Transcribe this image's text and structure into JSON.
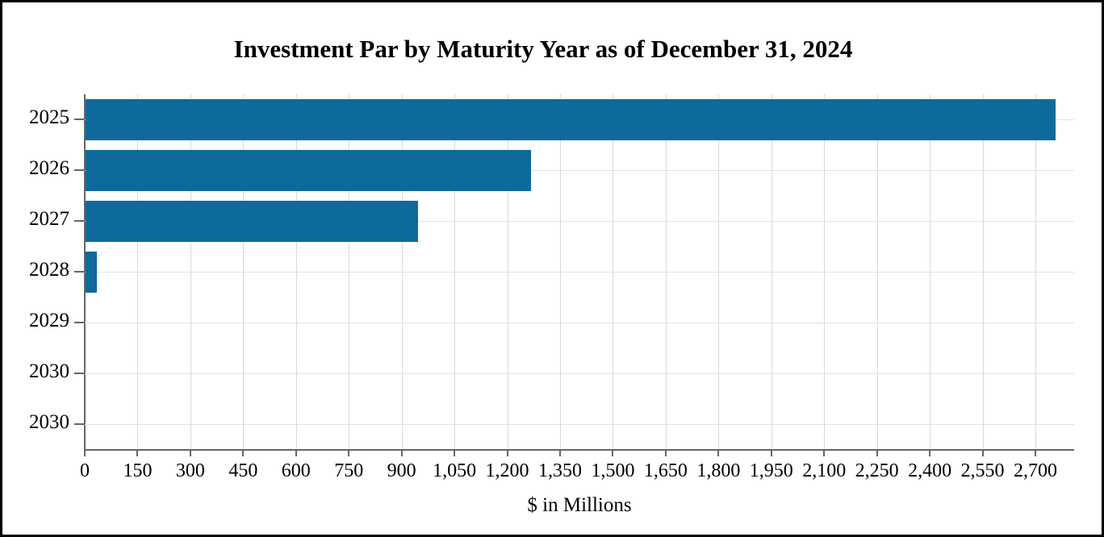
{
  "chart_data": {
    "type": "bar",
    "orientation": "horizontal",
    "title": "Investment Par by Maturity Year as of December 31, 2024",
    "xlabel": "$ in Millions",
    "ylabel": "",
    "categories": [
      "2025",
      "2026",
      "2027",
      "2028",
      "2029",
      "2030",
      "2030"
    ],
    "values": [
      2755,
      1265,
      945,
      33,
      0,
      0,
      0
    ],
    "xlim": [
      0,
      2810
    ],
    "x_ticks": [
      0,
      150,
      300,
      450,
      600,
      750,
      900,
      1050,
      1200,
      1350,
      1500,
      1650,
      1800,
      1950,
      2100,
      2250,
      2400,
      2550,
      2700
    ],
    "x_tick_labels": [
      "0",
      "150",
      "300",
      "450",
      "600",
      "750",
      "900",
      "1,050",
      "1,200",
      "1,350",
      "1,500",
      "1,650",
      "1,800",
      "1,950",
      "2,100",
      "2,250",
      "2,400",
      "2,550",
      "2,700"
    ],
    "grid": true,
    "legend": "none",
    "bar_color": "#0e6a9b",
    "axis_color": "#666666",
    "grid_color": "#d9d9d9",
    "background_color": "#ffffff",
    "border_color": "#000000"
  }
}
